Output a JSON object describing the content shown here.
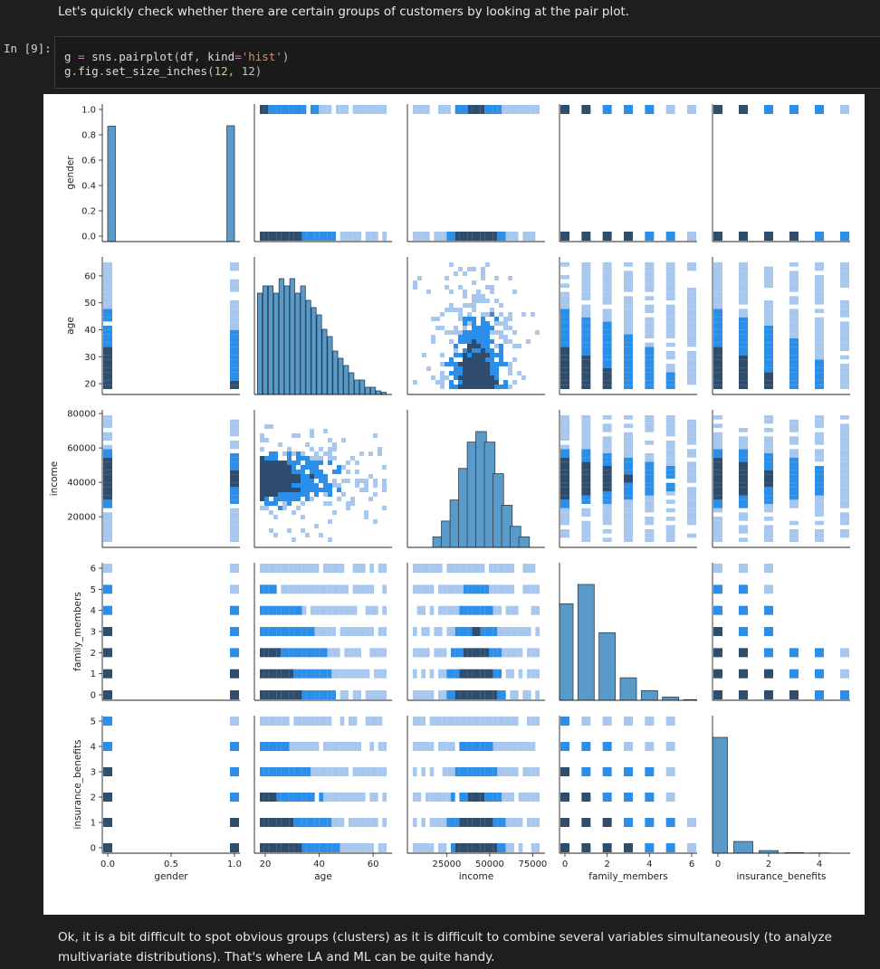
{
  "markdown_top": "Let's quickly check whether there are certain groups of customers by looking at the pair plot.",
  "cell": {
    "prompt": "In [9]:",
    "code_lines": [
      [
        [
          "g",
          "name"
        ],
        [
          " = ",
          "op"
        ],
        [
          "sns",
          "name"
        ],
        [
          ".",
          "p"
        ],
        [
          "pairplot",
          "name"
        ],
        [
          "(",
          "p"
        ],
        [
          "df",
          "name"
        ],
        [
          ", ",
          "p"
        ],
        [
          "kind",
          "name"
        ],
        [
          "=",
          "op"
        ],
        [
          "'hist'",
          "str"
        ],
        [
          ")",
          "p"
        ]
      ],
      [
        [
          "g",
          "name"
        ],
        [
          ".",
          "p"
        ],
        [
          "fig",
          "name"
        ],
        [
          ".",
          "p"
        ],
        [
          "set_size_inches",
          "name"
        ],
        [
          "(",
          "p"
        ],
        [
          "12",
          "num"
        ],
        [
          ", ",
          "p"
        ],
        [
          "12",
          "num"
        ],
        [
          ")",
          "p"
        ]
      ]
    ]
  },
  "markdown_bottom": "Ok, it is a bit difficult to spot obvious groups (clusters) as it is difficult to combine several variables simultaneously (to analyze multivariate distributions). That's where LA and ML can be quite handy.",
  "colors": {
    "bar_fill": "#5a9ac8",
    "bar_edge": "#2b3e50",
    "light": "#a7c7ef",
    "mid": "#2b8ee8",
    "dark": "#2e4d6f"
  },
  "chart_data": {
    "type": "pairplot",
    "kind": "hist",
    "variables": [
      "gender",
      "age",
      "income",
      "family_members",
      "insurance_benefits"
    ],
    "axes": {
      "gender": {
        "range": [
          0,
          1
        ],
        "ticks_x": [
          "0.0",
          "0.5",
          "1.0"
        ],
        "ticks_y": [
          "0.0",
          "0.2",
          "0.4",
          "0.6",
          "0.8",
          "1.0"
        ]
      },
      "age": {
        "range": [
          18,
          65
        ],
        "ticks_x": [
          "20",
          "40",
          "60"
        ],
        "ticks_y": [
          "20",
          "30",
          "40",
          "50",
          "60"
        ]
      },
      "income": {
        "range": [
          5300,
          79000
        ],
        "ticks_x": [
          "25000",
          "50000",
          "75000"
        ],
        "ticks_y": [
          "20000",
          "40000",
          "60000",
          "80000"
        ]
      },
      "family_members": {
        "range": [
          0,
          6
        ],
        "ticks_x": [
          "0",
          "2",
          "4",
          "6"
        ],
        "ticks_y": [
          "0",
          "1",
          "2",
          "3",
          "4",
          "5",
          "6"
        ]
      },
      "insurance_benefits": {
        "range": [
          0,
          5
        ],
        "ticks_x": [
          "0",
          "2",
          "4"
        ],
        "ticks_y": [
          "0",
          "1",
          "2",
          "3",
          "4",
          "5"
        ]
      }
    },
    "diagonal_histograms": {
      "gender": {
        "bins": [
          0,
          1
        ],
        "density": [
          0.499,
          0.501
        ]
      },
      "age": {
        "bins": [
          18,
          20,
          22,
          24,
          26,
          28,
          30,
          32,
          34,
          36,
          38,
          40,
          42,
          44,
          46,
          48,
          50,
          52,
          54,
          56,
          58,
          60,
          62,
          64
        ],
        "density": [
          0.14,
          0.15,
          0.15,
          0.14,
          0.16,
          0.15,
          0.16,
          0.14,
          0.15,
          0.13,
          0.12,
          0.11,
          0.09,
          0.08,
          0.06,
          0.05,
          0.04,
          0.03,
          0.02,
          0.02,
          0.01,
          0.01,
          0.005,
          0.003
        ]
      },
      "income": {
        "bins": [
          20000,
          25000,
          30000,
          35000,
          40000,
          45000,
          50000,
          55000,
          60000,
          65000,
          70000
        ],
        "density": [
          0.02,
          0.05,
          0.09,
          0.15,
          0.2,
          0.22,
          0.2,
          0.14,
          0.08,
          0.04,
          0.02
        ]
      },
      "family_members": {
        "bins": [
          0,
          1,
          2,
          3,
          4,
          5,
          6
        ],
        "density": [
          0.3,
          0.36,
          0.21,
          0.07,
          0.03,
          0.01,
          0.002
        ]
      },
      "insurance_benefits": {
        "bins": [
          0,
          1,
          2,
          3,
          4,
          5
        ],
        "density": [
          0.89,
          0.09,
          0.02,
          0.004,
          0.002,
          0.0
        ]
      }
    }
  }
}
